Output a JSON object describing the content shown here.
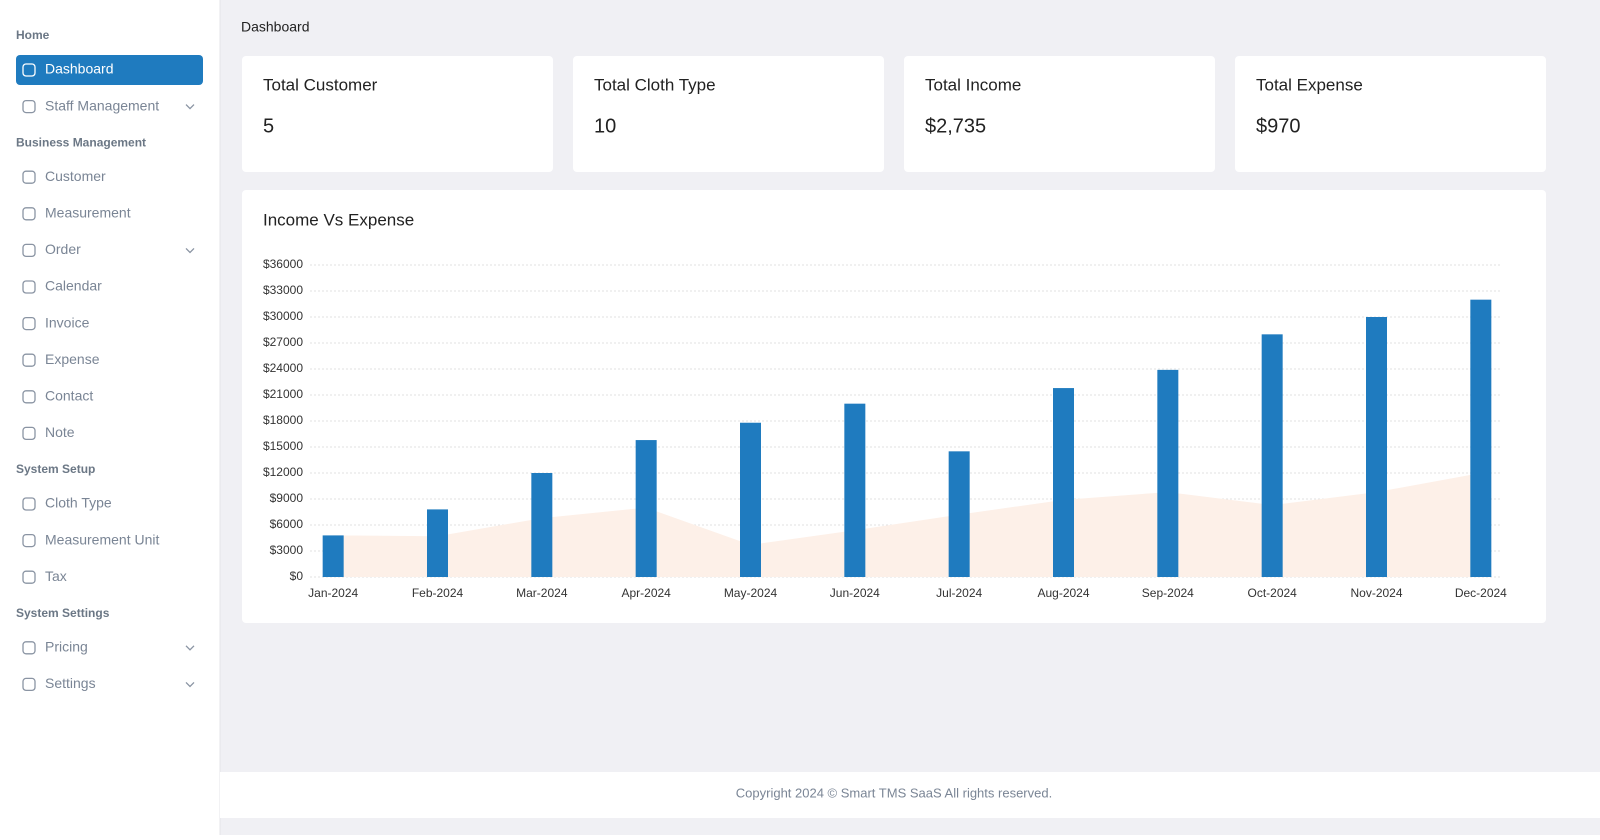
{
  "breadcrumb": "Dashboard",
  "sidebar": [
    {
      "section": "Home",
      "items": [
        {
          "label": "Dashboard",
          "active": true
        },
        {
          "label": "Staff Management",
          "expandable": true
        }
      ]
    },
    {
      "section": "Business Management",
      "items": [
        {
          "label": "Customer"
        },
        {
          "label": "Measurement"
        },
        {
          "label": "Order",
          "expandable": true
        },
        {
          "label": "Calendar"
        },
        {
          "label": "Invoice"
        },
        {
          "label": "Expense"
        },
        {
          "label": "Contact"
        },
        {
          "label": "Note"
        }
      ]
    },
    {
      "section": "System Setup",
      "items": [
        {
          "label": "Cloth Type"
        },
        {
          "label": "Measurement Unit"
        },
        {
          "label": "Tax"
        }
      ]
    },
    {
      "section": "System Settings",
      "items": [
        {
          "label": "Pricing",
          "expandable": true
        },
        {
          "label": "Settings",
          "expandable": true
        }
      ]
    }
  ],
  "cards": [
    {
      "title": "Total Customer",
      "value": "5"
    },
    {
      "title": "Total Cloth Type",
      "value": "10"
    },
    {
      "title": "Total Income",
      "value": "$2,735"
    },
    {
      "title": "Total Expense",
      "value": "$970"
    }
  ],
  "chart_data": {
    "type": "bar",
    "title": "Income Vs Expense",
    "categories": [
      "Jan-2024",
      "Feb-2024",
      "Mar-2024",
      "Apr-2024",
      "May-2024",
      "Jun-2024",
      "Jul-2024",
      "Aug-2024",
      "Sep-2024",
      "Oct-2024",
      "Nov-2024",
      "Dec-2024"
    ],
    "series": [
      {
        "style": "area",
        "color": "#fdf0e8",
        "values": [
          4800,
          4700,
          6800,
          8000,
          3700,
          5400,
          7200,
          8900,
          9800,
          8300,
          9800,
          12000
        ]
      },
      {
        "style": "bar",
        "color": "#1f7bbf",
        "values": [
          4800,
          7800,
          12000,
          15800,
          17800,
          20000,
          14500,
          21800,
          23900,
          28000,
          30000,
          32000
        ]
      }
    ],
    "ylim": [
      0,
      36000
    ],
    "yticks": [
      {
        "value": 0,
        "label": "$0"
      },
      {
        "value": 3000,
        "label": "$3000"
      },
      {
        "value": 6000,
        "label": "$6000"
      },
      {
        "value": 9000,
        "label": "$9000"
      },
      {
        "value": 12000,
        "label": "$12000"
      },
      {
        "value": 15000,
        "label": "$15000"
      },
      {
        "value": 18000,
        "label": "$18000"
      },
      {
        "value": 21000,
        "label": "$21000"
      },
      {
        "value": 24000,
        "label": "$24000"
      },
      {
        "value": 27000,
        "label": "$27000"
      },
      {
        "value": 30000,
        "label": "$30000"
      },
      {
        "value": 33000,
        "label": "$33000"
      },
      {
        "value": 36000,
        "label": "$36000"
      }
    ],
    "grid": true
  },
  "footer": "Copyright 2024 © Smart TMS SaaS All rights reserved."
}
